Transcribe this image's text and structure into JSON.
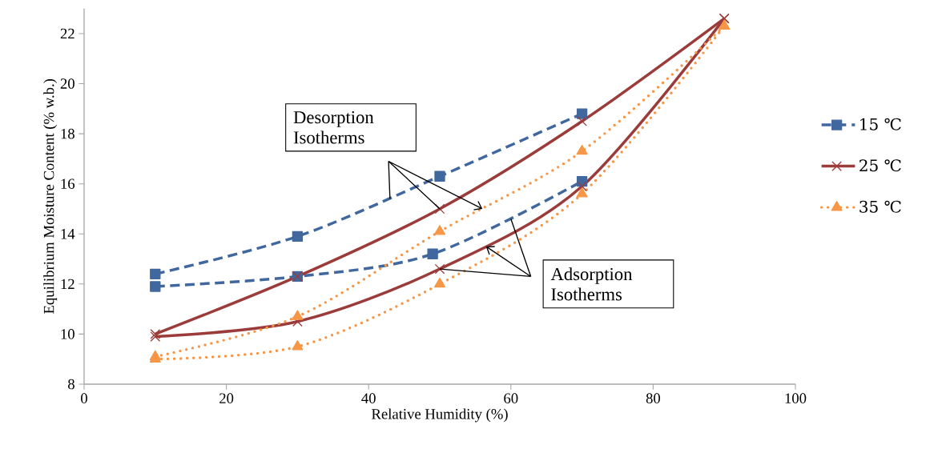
{
  "chart_data": {
    "type": "line",
    "xlabel": "Relative Humidity (%)",
    "ylabel": "Equilibrium Moisture Content  (% w.b.)",
    "xlim": [
      0,
      100
    ],
    "xticks": [
      0,
      20,
      40,
      60,
      80,
      100
    ],
    "ylim": [
      8,
      23
    ],
    "yticks": [
      8,
      10,
      12,
      14,
      16,
      18,
      20,
      22
    ],
    "grid": false,
    "legend": "right",
    "annotations": [
      {
        "text": "Desorption Isotherms",
        "x": 50,
        "y": 15.0
      },
      {
        "text": "Adsorption Isotherms",
        "x": 50,
        "y": 12.6
      }
    ],
    "series": [
      {
        "name": "15 ℃",
        "color": "#41689e",
        "line_style": "dashed",
        "marker": "square",
        "x": [
          10,
          30,
          50,
          70
        ],
        "values": [
          12.4,
          13.9,
          16.3,
          18.8
        ]
      },
      {
        "color": "#41689e",
        "line_style": "dashed",
        "marker": "square",
        "x": [
          10,
          30,
          49,
          70
        ],
        "values": [
          11.9,
          12.3,
          13.2,
          16.1
        ]
      },
      {
        "name": "25 ℃",
        "color": "#9b3b3a",
        "line_style": "solid",
        "marker": "cross",
        "x": [
          10,
          30,
          50,
          70,
          90
        ],
        "values": [
          10.0,
          12.3,
          15.0,
          18.5,
          22.6
        ]
      },
      {
        "color": "#9b3b3a",
        "line_style": "solid",
        "marker": "cross",
        "x": [
          10,
          30,
          50,
          70,
          90
        ],
        "values": [
          9.9,
          10.5,
          12.6,
          15.9,
          22.6
        ]
      },
      {
        "name": "35 ℃",
        "color": "#f79646",
        "line_style": "dotted",
        "marker": "triangle",
        "x": [
          10,
          30,
          50,
          70,
          90
        ],
        "values": [
          9.1,
          10.7,
          14.1,
          17.3,
          22.3
        ]
      },
      {
        "color": "#f79646",
        "line_style": "dotted",
        "marker": "triangle",
        "x": [
          10,
          30,
          50,
          70,
          90
        ],
        "values": [
          9.0,
          9.5,
          12.0,
          15.6,
          22.3
        ]
      }
    ]
  }
}
